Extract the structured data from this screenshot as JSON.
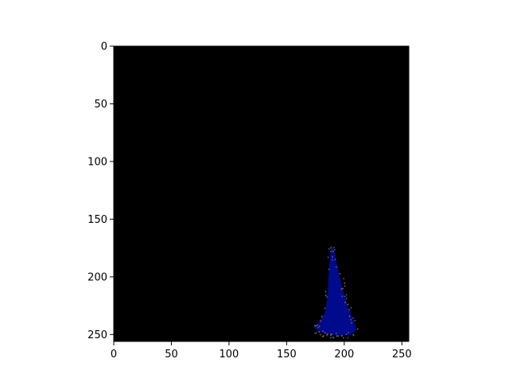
{
  "chart_data": {
    "type": "heatmap",
    "title": "",
    "xlabel": "",
    "ylabel": "",
    "xlim": [
      0,
      256
    ],
    "ylim": [
      256,
      0
    ],
    "x_ticks": [
      0,
      50,
      100,
      150,
      200,
      250
    ],
    "y_ticks": [
      0,
      50,
      100,
      150,
      200,
      250
    ],
    "grid": false,
    "background_color": "#000000",
    "region": {
      "description_color": "#000a8c",
      "outline": [
        [
          189,
          172
        ],
        [
          192,
          180
        ],
        [
          195,
          195
        ],
        [
          199,
          212
        ],
        [
          203,
          225
        ],
        [
          208,
          238
        ],
        [
          211,
          246
        ],
        [
          206,
          250
        ],
        [
          196,
          251
        ],
        [
          186,
          250
        ],
        [
          178,
          248
        ],
        [
          174,
          244
        ],
        [
          178,
          239
        ],
        [
          183,
          232
        ],
        [
          185,
          220
        ],
        [
          186,
          205
        ],
        [
          187,
          190
        ],
        [
          188,
          180
        ]
      ]
    },
    "speckle_colors": [
      "#c06a2a",
      "#8a6a3a",
      "#3f7a7a",
      "#6a5aa0"
    ]
  }
}
